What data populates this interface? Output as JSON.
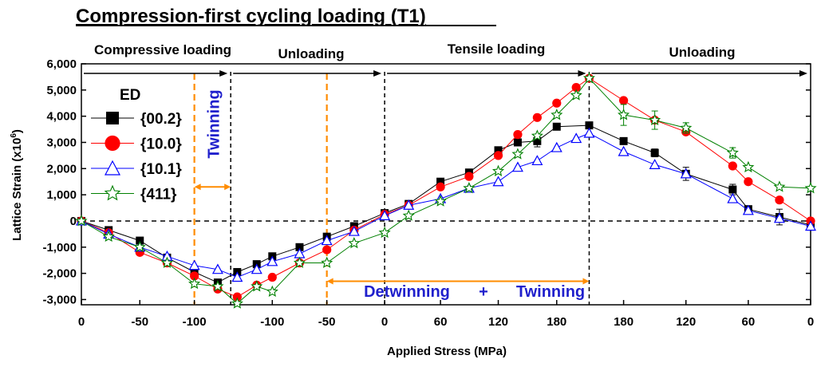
{
  "chart_data": {
    "type": "line",
    "title": "Compression-first cycling loading (T1)",
    "xlabel": "Applied Stress (MPa)",
    "ylabel_main": "Lattice Strain (x10",
    "ylabel_exp": "6",
    "ylabel_close": ")",
    "ylim": [
      -3200,
      6000
    ],
    "y_ticks": [
      -3000,
      -2000,
      -1000,
      0,
      1000,
      2000,
      3000,
      4000,
      5000,
      6000
    ],
    "y_tick_labels": [
      "-3,000",
      "-2,000",
      "-1,000",
      "0",
      "1,000",
      "2,000",
      "3,000",
      "4,000",
      "5,000",
      "6,000"
    ],
    "x_ticks": [
      {
        "step": 0,
        "label": "0"
      },
      {
        "step": 1.8,
        "label": "-50"
      },
      {
        "step": 3.48,
        "label": "-100"
      },
      {
        "step": 5.88,
        "label": "-100"
      },
      {
        "step": 7.56,
        "label": "-50"
      },
      {
        "step": 9.34,
        "label": "0"
      },
      {
        "step": 11.06,
        "label": "60"
      },
      {
        "step": 12.84,
        "label": "120"
      },
      {
        "step": 14.64,
        "label": "180"
      },
      {
        "step": 16.7,
        "label": "180"
      },
      {
        "step": 18.62,
        "label": "120"
      },
      {
        "step": 20.54,
        "label": "60"
      },
      {
        "step": 22.46,
        "label": "0"
      }
    ],
    "phases": [
      "Compressive loading",
      "Unloading",
      "Tensile loading",
      "Unloading"
    ],
    "phase_boundaries": [
      4.6,
      9.34,
      15.64
    ],
    "twinning_markers": [
      3.48,
      7.56,
      15.64
    ],
    "annotations": {
      "twinning": "Twinning",
      "detwinning": "Detwinning",
      "plus": "+",
      "twinning2": "Twinning"
    },
    "legend_title": "ED",
    "series": [
      {
        "name": "{00.2}",
        "color": "#000000",
        "marker": "square",
        "values": [
          0,
          -350,
          -750,
          -1400,
          -1950,
          -2350,
          -1950,
          -1650,
          -1350,
          -1000,
          -600,
          -200,
          300,
          650,
          1500,
          1850,
          2700,
          3000,
          3050,
          3600,
          3650,
          3050,
          2600,
          1800,
          1200,
          450,
          150,
          -150
        ],
        "errors": [
          0,
          0,
          0,
          0,
          0,
          0,
          0,
          0,
          0,
          0,
          0,
          0,
          0,
          0,
          0,
          0,
          0,
          0,
          220,
          0,
          0,
          0,
          150,
          250,
          200,
          0,
          300,
          0
        ]
      },
      {
        "name": "{10.0}",
        "color": "#ff0000",
        "marker": "circle",
        "values": [
          0,
          -450,
          -1200,
          -1600,
          -2100,
          -2600,
          -2900,
          -2450,
          -2150,
          -1600,
          -1100,
          -350,
          250,
          600,
          1300,
          1700,
          2500,
          3300,
          3950,
          4500,
          5100,
          5450,
          4600,
          3850,
          3400,
          2100,
          1500,
          800,
          0
        ],
        "errors": [
          0,
          0,
          0,
          0,
          0,
          0,
          0,
          0,
          0,
          0,
          0,
          0,
          0,
          0,
          0,
          0,
          0,
          0,
          0,
          0,
          0,
          0,
          0,
          0,
          0,
          0,
          0,
          0,
          0
        ]
      },
      {
        "name": "{10.1}",
        "color": "#0000ff",
        "marker": "triangle",
        "values": [
          0,
          -500,
          -1000,
          -1350,
          -1700,
          -1850,
          -2150,
          -1850,
          -1550,
          -1250,
          -750,
          -400,
          200,
          600,
          850,
          1250,
          1500,
          2050,
          2300,
          2800,
          3150,
          3350,
          2650,
          2150,
          1800,
          850,
          400,
          100,
          -200
        ],
        "errors": [
          0,
          0,
          0,
          0,
          0,
          0,
          0,
          0,
          0,
          0,
          0,
          0,
          0,
          0,
          0,
          0,
          0,
          0,
          0,
          0,
          0,
          0,
          0,
          0,
          0,
          0,
          0,
          0,
          0
        ]
      },
      {
        "name": "{411}",
        "color": "#008000",
        "marker": "star",
        "values": [
          0,
          -600,
          -1000,
          -1600,
          -2400,
          -2500,
          -3150,
          -2500,
          -2700,
          -1600,
          -1600,
          -850,
          -450,
          200,
          750,
          1250,
          1900,
          2550,
          3250,
          4050,
          4800,
          5450,
          4050,
          3850,
          3550,
          2600,
          2050,
          1300,
          1250
        ],
        "errors": [
          0,
          0,
          0,
          0,
          0,
          0,
          0,
          0,
          0,
          0,
          0,
          0,
          0,
          0,
          0,
          0,
          0,
          0,
          0,
          0,
          0,
          0,
          400,
          350,
          200,
          200,
          0,
          0,
          0
        ]
      }
    ],
    "x_positions": {
      "{00.2}": [
        0,
        0.84,
        1.8,
        2.64,
        3.48,
        4.2,
        4.8,
        5.4,
        5.88,
        6.72,
        7.56,
        8.4,
        9.34,
        10.08,
        11.06,
        11.94,
        12.84,
        13.44,
        14.04,
        14.64,
        15.64,
        16.7,
        17.66,
        18.62,
        20.06,
        20.54,
        21.5,
        22.46
      ],
      "{10.0}": [
        0,
        0.84,
        1.8,
        2.64,
        3.48,
        4.2,
        4.8,
        5.4,
        5.88,
        6.72,
        7.56,
        8.4,
        9.34,
        10.08,
        11.06,
        11.94,
        12.84,
        13.44,
        14.04,
        14.64,
        15.24,
        15.64,
        16.7,
        17.66,
        18.62,
        20.06,
        20.54,
        21.5,
        22.46
      ],
      "{10.1}": [
        0,
        0.84,
        1.8,
        2.64,
        3.48,
        4.2,
        4.8,
        5.4,
        5.88,
        6.72,
        7.56,
        8.4,
        9.34,
        10.08,
        11.06,
        11.94,
        12.84,
        13.44,
        14.04,
        14.64,
        15.24,
        15.64,
        16.7,
        17.66,
        18.62,
        20.06,
        20.54,
        21.5,
        22.46
      ],
      "{411}": [
        0,
        0.84,
        1.8,
        2.64,
        3.48,
        4.2,
        4.8,
        5.4,
        5.88,
        6.72,
        7.56,
        8.4,
        9.34,
        10.08,
        11.06,
        11.94,
        12.84,
        13.44,
        14.04,
        14.64,
        15.24,
        15.64,
        16.7,
        17.66,
        18.62,
        20.06,
        20.54,
        21.5,
        22.46
      ]
    },
    "x_range": [
      0,
      22.46
    ],
    "colors": {
      "accent_orange": "#ff8c00",
      "annotation_blue": "#1f1fcc",
      "axis": "#000000"
    }
  }
}
